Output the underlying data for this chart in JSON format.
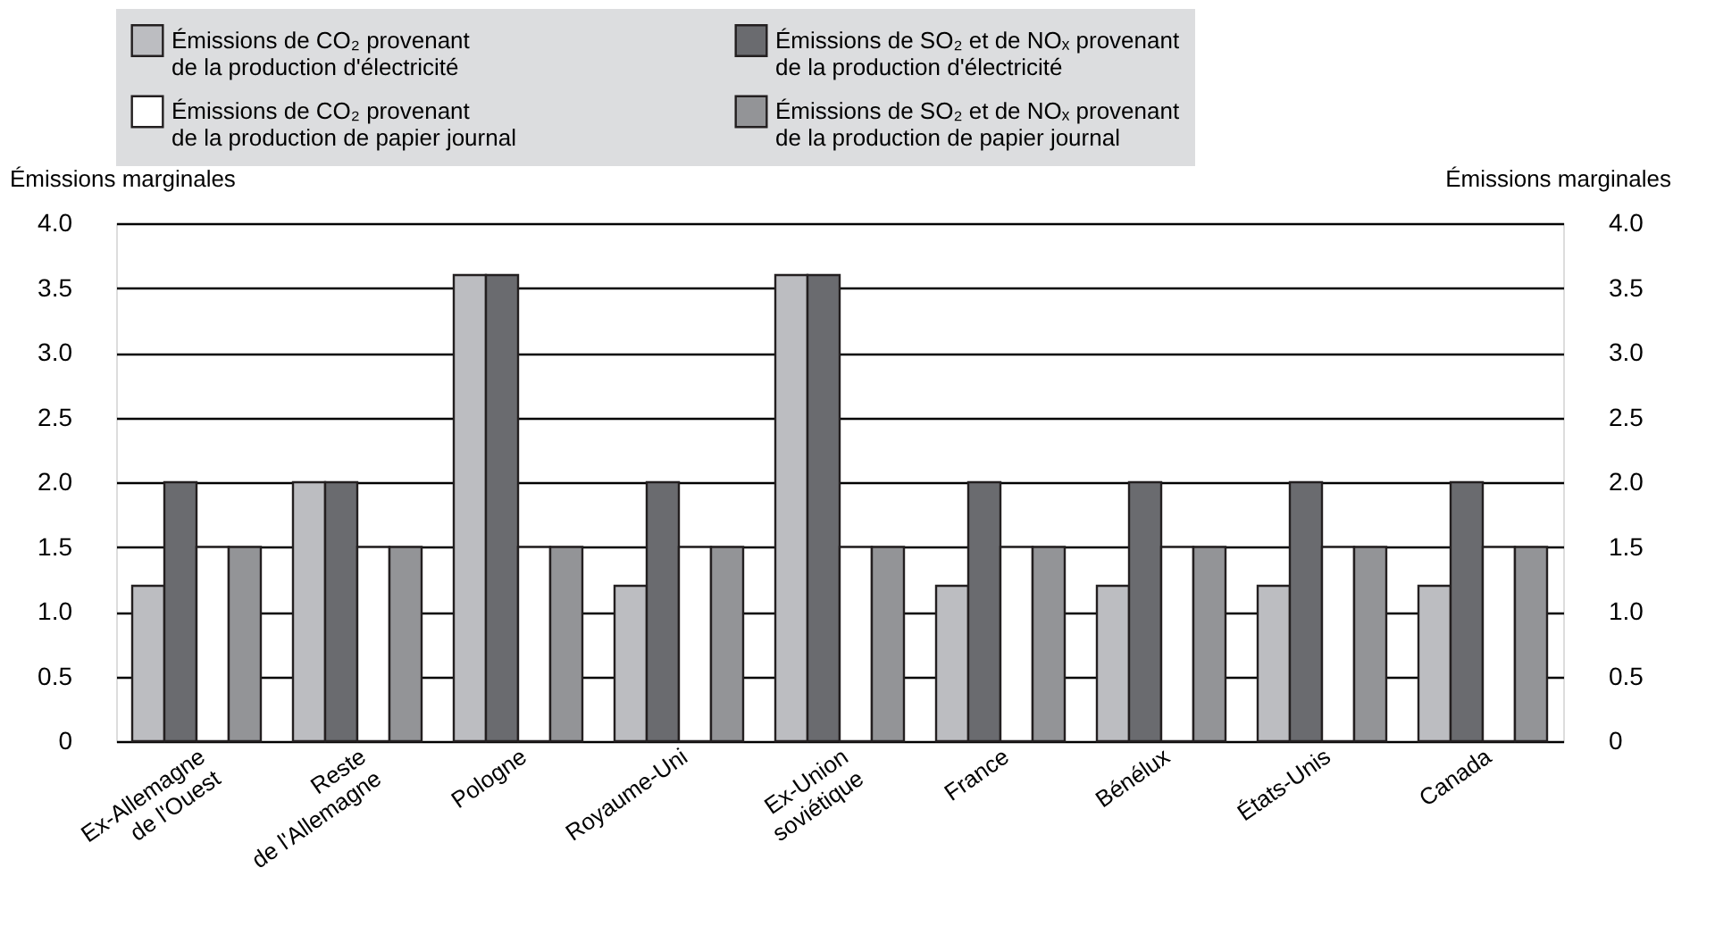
{
  "chart_data": {
    "type": "bar",
    "categories": [
      "Ex-Allemagne\nde l'Ouest",
      "Reste\nde l'Allemagne",
      "Pologne",
      "Royaume-Uni",
      "Ex-Union\nsoviétique",
      "France",
      "Bénélux",
      "États-Unis",
      "Canada"
    ],
    "series": [
      {
        "name": "Émissions de CO₂ provenant\nde la production d'électricité",
        "color": "#bcbdc1",
        "values": [
          1.2,
          2.0,
          3.6,
          1.2,
          3.6,
          1.2,
          1.2,
          1.2,
          1.2
        ]
      },
      {
        "name": "Émissions de SO₂ et de NOₓ provenant\nde la production d'électricité",
        "color": "#6a6b6f",
        "values": [
          2.0,
          2.0,
          3.6,
          2.0,
          3.6,
          2.0,
          2.0,
          2.0,
          2.0
        ]
      },
      {
        "name": "Émissions de CO₂ provenant\nde la production de papier journal",
        "color": "#ffffff",
        "values": [
          1.5,
          1.5,
          1.5,
          1.5,
          1.5,
          1.5,
          1.5,
          1.5,
          1.5
        ]
      },
      {
        "name": "Émissions de SO₂ et de NOₓ provenant\nde la production de papier journal",
        "color": "#939497",
        "values": [
          1.5,
          1.5,
          1.5,
          1.5,
          1.5,
          1.5,
          1.5,
          1.5,
          1.5
        ]
      }
    ],
    "ylabel": "Émissions marginales",
    "y2label": "Émissions marginales",
    "ylim": [
      0,
      4
    ],
    "yticks": [
      0,
      {
        "value": 0.5,
        "label": "0.5"
      },
      {
        "value": 1,
        "label": "1.0"
      },
      {
        "value": 1.5,
        "label": "1.5"
      },
      {
        "value": 2,
        "label": "2.0"
      },
      {
        "value": 2.5,
        "label": "2.5"
      },
      {
        "value": 3,
        "label": "3.0"
      },
      {
        "value": 3.5,
        "label": "3.5"
      },
      {
        "value": 4,
        "label": "4.0"
      }
    ],
    "y2lim": [
      0,
      4
    ],
    "y2ticks": [
      0,
      {
        "value": 0.5,
        "label": "0.5"
      },
      {
        "value": 1,
        "label": "1.0"
      },
      {
        "value": 1.5,
        "label": "1.5"
      },
      {
        "value": 2,
        "label": "2.0"
      },
      {
        "value": 2.5,
        "label": "2.5"
      },
      {
        "value": 3,
        "label": "3.0"
      },
      {
        "value": 3.5,
        "label": "3.5"
      },
      {
        "value": 4,
        "label": "4.0"
      }
    ],
    "grid": "y",
    "legend": "top"
  }
}
